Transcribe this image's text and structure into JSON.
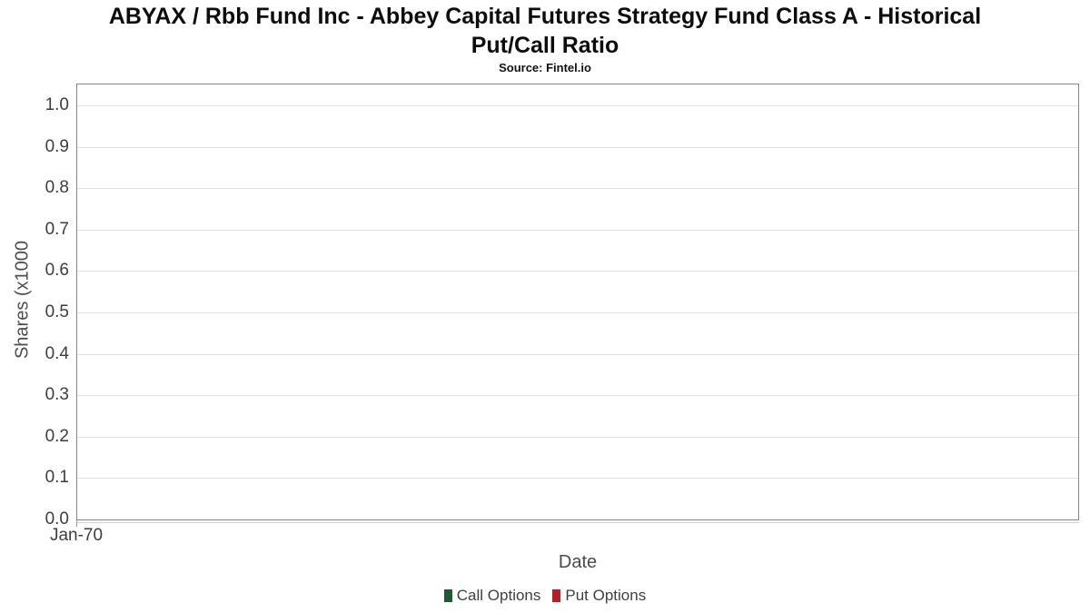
{
  "header": {
    "title_line1": "ABYAX / Rbb Fund Inc - Abbey Capital Futures Strategy Fund Class A - Historical",
    "title_line2": "Put/Call Ratio",
    "subtitle": "Source: Fintel.io"
  },
  "chart_data": {
    "type": "line",
    "title": "ABYAX / Rbb Fund Inc - Abbey Capital Futures Strategy Fund Class A - Historical Put/Call Ratio",
    "subtitle": "Source: Fintel.io",
    "xlabel": "Date",
    "ylabel": "Shares (x1000",
    "x_ticks": [
      {
        "label": "Jan-70",
        "pos": 0
      }
    ],
    "y_ticks": [
      {
        "label": "0.0",
        "value": 0.0
      },
      {
        "label": "0.1",
        "value": 0.1
      },
      {
        "label": "0.2",
        "value": 0.2
      },
      {
        "label": "0.3",
        "value": 0.3
      },
      {
        "label": "0.4",
        "value": 0.4
      },
      {
        "label": "0.5",
        "value": 0.5
      },
      {
        "label": "0.6",
        "value": 0.6
      },
      {
        "label": "0.7",
        "value": 0.7
      },
      {
        "label": "0.8",
        "value": 0.8
      },
      {
        "label": "0.9",
        "value": 0.9
      },
      {
        "label": "1.0",
        "value": 1.0
      }
    ],
    "ylim": [
      0,
      1.05
    ],
    "grid": "horizontal-only",
    "legend_position": "bottom-center",
    "series": [
      {
        "name": "Call Options",
        "color": "#1e5b33",
        "x": [],
        "values": []
      },
      {
        "name": "Put Options",
        "color": "#b21f24",
        "x": [],
        "values": []
      }
    ]
  },
  "colors": {
    "plot_border": "#848484",
    "gridline": "#e2e2e2",
    "axis_line": "#cfcfcf",
    "title_text": "#0d0d0d",
    "tick_text": "#3d3d3d",
    "axis_title_text": "#4a4a4a",
    "legend_text": "#3f3f3f",
    "call_options": "#1e5b33",
    "put_options": "#b21f24"
  }
}
